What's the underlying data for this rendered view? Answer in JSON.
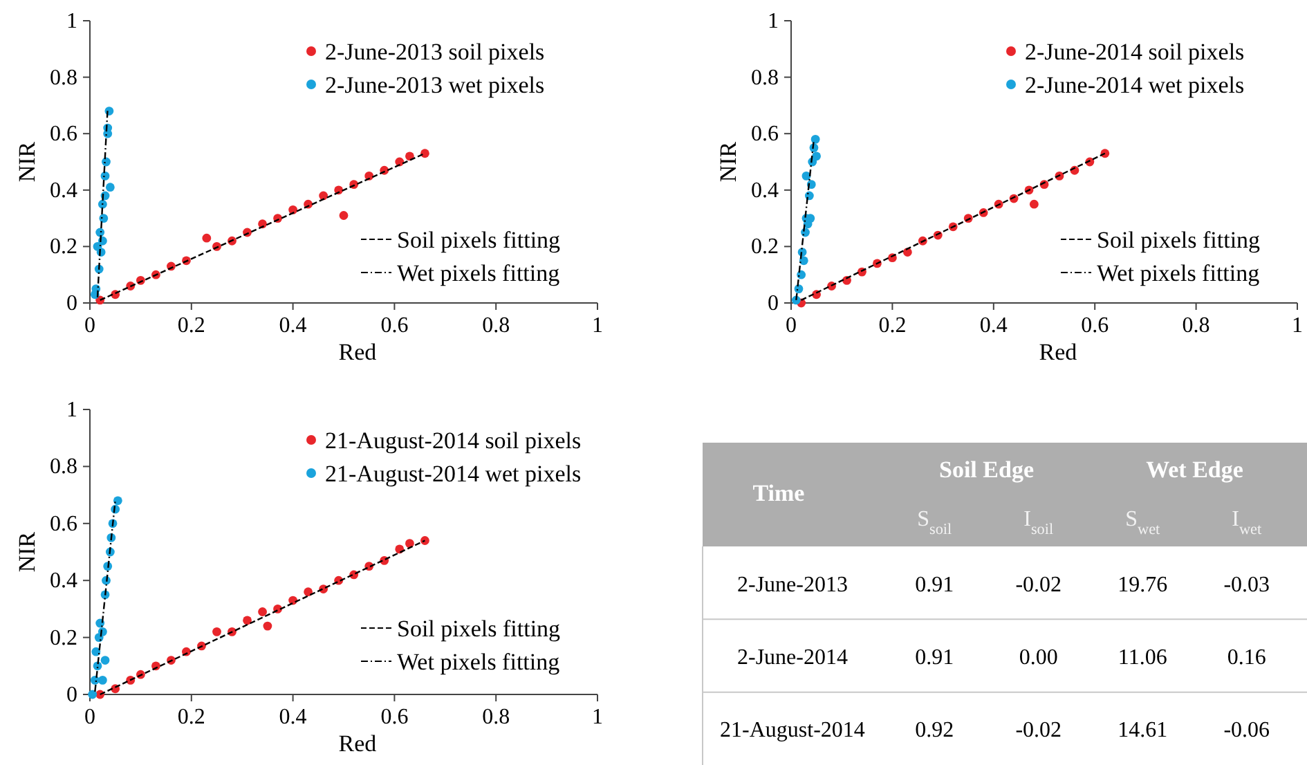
{
  "chart_data": [
    {
      "type": "scatter",
      "xlabel": "Red",
      "ylabel": "NIR",
      "xlim": [
        0,
        1
      ],
      "ylim": [
        0,
        1
      ],
      "xticks": [
        0,
        0.2,
        0.4,
        0.6,
        0.8,
        1
      ],
      "yticks": [
        0,
        0.2,
        0.4,
        0.6,
        0.8,
        1
      ],
      "legend": "right",
      "series": [
        {
          "name": "2-June-2013 soil pixels",
          "color": "#e8262b",
          "marker": "circle",
          "x": [
            0.02,
            0.05,
            0.08,
            0.1,
            0.13,
            0.16,
            0.19,
            0.23,
            0.25,
            0.28,
            0.31,
            0.34,
            0.37,
            0.4,
            0.43,
            0.46,
            0.49,
            0.5,
            0.52,
            0.55,
            0.58,
            0.61,
            0.63,
            0.66
          ],
          "values": [
            0.01,
            0.03,
            0.06,
            0.08,
            0.1,
            0.13,
            0.15,
            0.23,
            0.2,
            0.22,
            0.25,
            0.28,
            0.3,
            0.33,
            0.35,
            0.38,
            0.4,
            0.31,
            0.42,
            0.45,
            0.47,
            0.5,
            0.52,
            0.53
          ]
        },
        {
          "name": "2-June-2013 wet pixels",
          "color": "#1aa3dc",
          "marker": "circle",
          "x": [
            0.01,
            0.012,
            0.015,
            0.018,
            0.02,
            0.022,
            0.025,
            0.027,
            0.03,
            0.032,
            0.035,
            0.038,
            0.04,
            0.03,
            0.025,
            0.035
          ],
          "values": [
            0.03,
            0.05,
            0.2,
            0.12,
            0.25,
            0.18,
            0.35,
            0.3,
            0.45,
            0.5,
            0.62,
            0.68,
            0.41,
            0.38,
            0.22,
            0.6
          ]
        },
        {
          "type": "line",
          "name": "Soil pixels fitting",
          "color": "#000000",
          "line_style": "dashed",
          "x": [
            0.02,
            0.66
          ],
          "values": [
            0.01,
            0.53
          ]
        },
        {
          "type": "line",
          "name": "Wet pixels fitting",
          "color": "#000000",
          "line_style": "dotted",
          "x": [
            0.015,
            0.035
          ],
          "values": [
            0.02,
            0.69
          ]
        }
      ]
    },
    {
      "type": "scatter",
      "xlabel": "Red",
      "ylabel": "NIR",
      "xlim": [
        0,
        1
      ],
      "ylim": [
        0,
        1
      ],
      "xticks": [
        0,
        0.2,
        0.4,
        0.6,
        0.8,
        1
      ],
      "yticks": [
        0,
        0.2,
        0.4,
        0.6,
        0.8,
        1
      ],
      "legend": "right",
      "series": [
        {
          "name": "2-June-2014 soil pixels",
          "color": "#e8262b",
          "marker": "circle",
          "x": [
            0.02,
            0.05,
            0.08,
            0.11,
            0.14,
            0.17,
            0.2,
            0.23,
            0.26,
            0.29,
            0.32,
            0.35,
            0.38,
            0.41,
            0.44,
            0.47,
            0.48,
            0.5,
            0.53,
            0.56,
            0.59,
            0.62
          ],
          "values": [
            0,
            0.03,
            0.06,
            0.08,
            0.11,
            0.14,
            0.16,
            0.18,
            0.22,
            0.24,
            0.27,
            0.3,
            0.32,
            0.35,
            0.37,
            0.4,
            0.35,
            0.42,
            0.45,
            0.47,
            0.5,
            0.53
          ]
        },
        {
          "name": "2-June-2014 wet pixels",
          "color": "#1aa3dc",
          "marker": "circle",
          "x": [
            0.01,
            0.015,
            0.02,
            0.022,
            0.025,
            0.028,
            0.03,
            0.033,
            0.036,
            0.04,
            0.042,
            0.045,
            0.048,
            0.05,
            0.038,
            0.03
          ],
          "values": [
            0.01,
            0.05,
            0.1,
            0.18,
            0.15,
            0.25,
            0.3,
            0.28,
            0.38,
            0.42,
            0.5,
            0.55,
            0.58,
            0.52,
            0.3,
            0.45
          ]
        },
        {
          "type": "line",
          "name": "Soil pixels fitting",
          "color": "#000000",
          "line_style": "dashed",
          "x": [
            0.02,
            0.62
          ],
          "values": [
            0.01,
            0.53
          ]
        },
        {
          "type": "line",
          "name": "Wet pixels fitting",
          "color": "#000000",
          "line_style": "dotted",
          "x": [
            0.01,
            0.045
          ],
          "values": [
            0.01,
            0.58
          ]
        }
      ]
    },
    {
      "type": "scatter",
      "xlabel": "Red",
      "ylabel": "NIR",
      "xlim": [
        0,
        1
      ],
      "ylim": [
        0,
        1
      ],
      "xticks": [
        0,
        0.2,
        0.4,
        0.6,
        0.8,
        1
      ],
      "yticks": [
        0,
        0.2,
        0.4,
        0.6,
        0.8,
        1
      ],
      "legend": "right",
      "series": [
        {
          "name": "21-August-2014 soil pixels",
          "color": "#e8262b",
          "marker": "circle",
          "x": [
            0.02,
            0.05,
            0.08,
            0.1,
            0.13,
            0.16,
            0.19,
            0.22,
            0.25,
            0.28,
            0.31,
            0.34,
            0.35,
            0.37,
            0.4,
            0.43,
            0.46,
            0.49,
            0.52,
            0.55,
            0.58,
            0.61,
            0.63,
            0.66
          ],
          "values": [
            0,
            0.02,
            0.05,
            0.07,
            0.1,
            0.12,
            0.15,
            0.17,
            0.22,
            0.22,
            0.26,
            0.29,
            0.24,
            0.3,
            0.33,
            0.36,
            0.37,
            0.4,
            0.42,
            0.45,
            0.47,
            0.51,
            0.53,
            0.54
          ]
        },
        {
          "name": "21-August-2014 wet pixels",
          "color": "#1aa3dc",
          "marker": "circle",
          "x": [
            0.005,
            0.01,
            0.012,
            0.015,
            0.018,
            0.02,
            0.025,
            0.03,
            0.032,
            0.035,
            0.04,
            0.042,
            0.045,
            0.05,
            0.055,
            0.03,
            0.025
          ],
          "values": [
            0,
            0.05,
            0.15,
            0.1,
            0.2,
            0.25,
            0.22,
            0.35,
            0.4,
            0.45,
            0.5,
            0.55,
            0.6,
            0.65,
            0.68,
            0.12,
            0.05
          ]
        },
        {
          "type": "line",
          "name": "Soil pixels fitting",
          "color": "#000000",
          "line_style": "dashed",
          "x": [
            0.02,
            0.66
          ],
          "values": [
            0,
            0.54
          ]
        },
        {
          "type": "line",
          "name": "Wet pixels fitting",
          "color": "#000000",
          "line_style": "dotted",
          "x": [
            0.01,
            0.05
          ],
          "values": [
            0.01,
            0.68
          ]
        }
      ]
    },
    {
      "type": "other",
      "annotations": [
        "Time",
        "Soil Edge",
        "Wet Edge"
      ],
      "categories": [
        "S$_{soil}$",
        "I$_{soil}$",
        "S$_{wet}$",
        "I$_{wet}$"
      ],
      "y_categories": [
        "2-June-2013",
        "2-June-2014",
        "21-August-2014"
      ],
      "cell_labels": [
        [
          "0.91",
          "-0.02",
          "19.76",
          "-0.03"
        ],
        [
          "0.91",
          "0.00",
          "11.06",
          "0.16"
        ],
        [
          "0.92",
          "-0.02",
          "14.61",
          "-0.06"
        ]
      ]
    }
  ]
}
